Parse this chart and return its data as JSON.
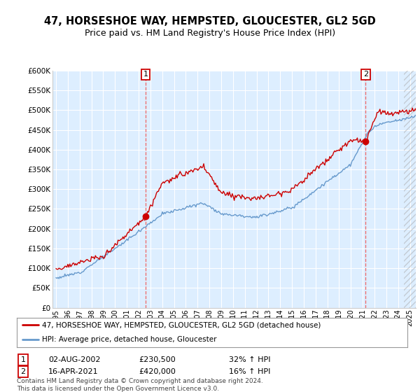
{
  "title": "47, HORSESHOE WAY, HEMPSTED, GLOUCESTER, GL2 5GD",
  "subtitle": "Price paid vs. HM Land Registry's House Price Index (HPI)",
  "title_fontsize": 10.5,
  "subtitle_fontsize": 9,
  "bg_color": "#ffffff",
  "plot_bg_color": "#ddeeff",
  "grid_color": "#ffffff",
  "red_color": "#cc0000",
  "blue_color": "#6699cc",
  "dashed_color": "#ee6666",
  "marker1_year": 2002.583,
  "marker1_val": 230500,
  "marker2_year": 2021.25,
  "marker2_val": 420000,
  "annotation1": {
    "label": "1",
    "date": "02-AUG-2002",
    "price": "£230,500",
    "hpi": "32% ↑ HPI"
  },
  "annotation2": {
    "label": "2",
    "date": "16-APR-2021",
    "price": "£420,000",
    "hpi": "16% ↑ HPI"
  },
  "legend1": "47, HORSESHOE WAY, HEMPSTED, GLOUCESTER, GL2 5GD (detached house)",
  "legend2": "HPI: Average price, detached house, Gloucester",
  "footer": "Contains HM Land Registry data © Crown copyright and database right 2024.\nThis data is licensed under the Open Government Licence v3.0.",
  "ylim": [
    0,
    600000
  ],
  "yticks": [
    0,
    50000,
    100000,
    150000,
    200000,
    250000,
    300000,
    350000,
    400000,
    450000,
    500000,
    550000,
    600000
  ],
  "ytick_labels": [
    "£0",
    "£50K",
    "£100K",
    "£150K",
    "£200K",
    "£250K",
    "£300K",
    "£350K",
    "£400K",
    "£450K",
    "£500K",
    "£550K",
    "£600K"
  ],
  "xlabels": [
    "1995",
    "1996",
    "1997",
    "1998",
    "1999",
    "2000",
    "2001",
    "2002",
    "2003",
    "2004",
    "2005",
    "2006",
    "2007",
    "2008",
    "2009",
    "2010",
    "2011",
    "2012",
    "2013",
    "2014",
    "2015",
    "2016",
    "2017",
    "2018",
    "2019",
    "2020",
    "2021",
    "2022",
    "2023",
    "2024",
    "2025"
  ],
  "xmin": 1994.7,
  "xmax": 2025.5
}
